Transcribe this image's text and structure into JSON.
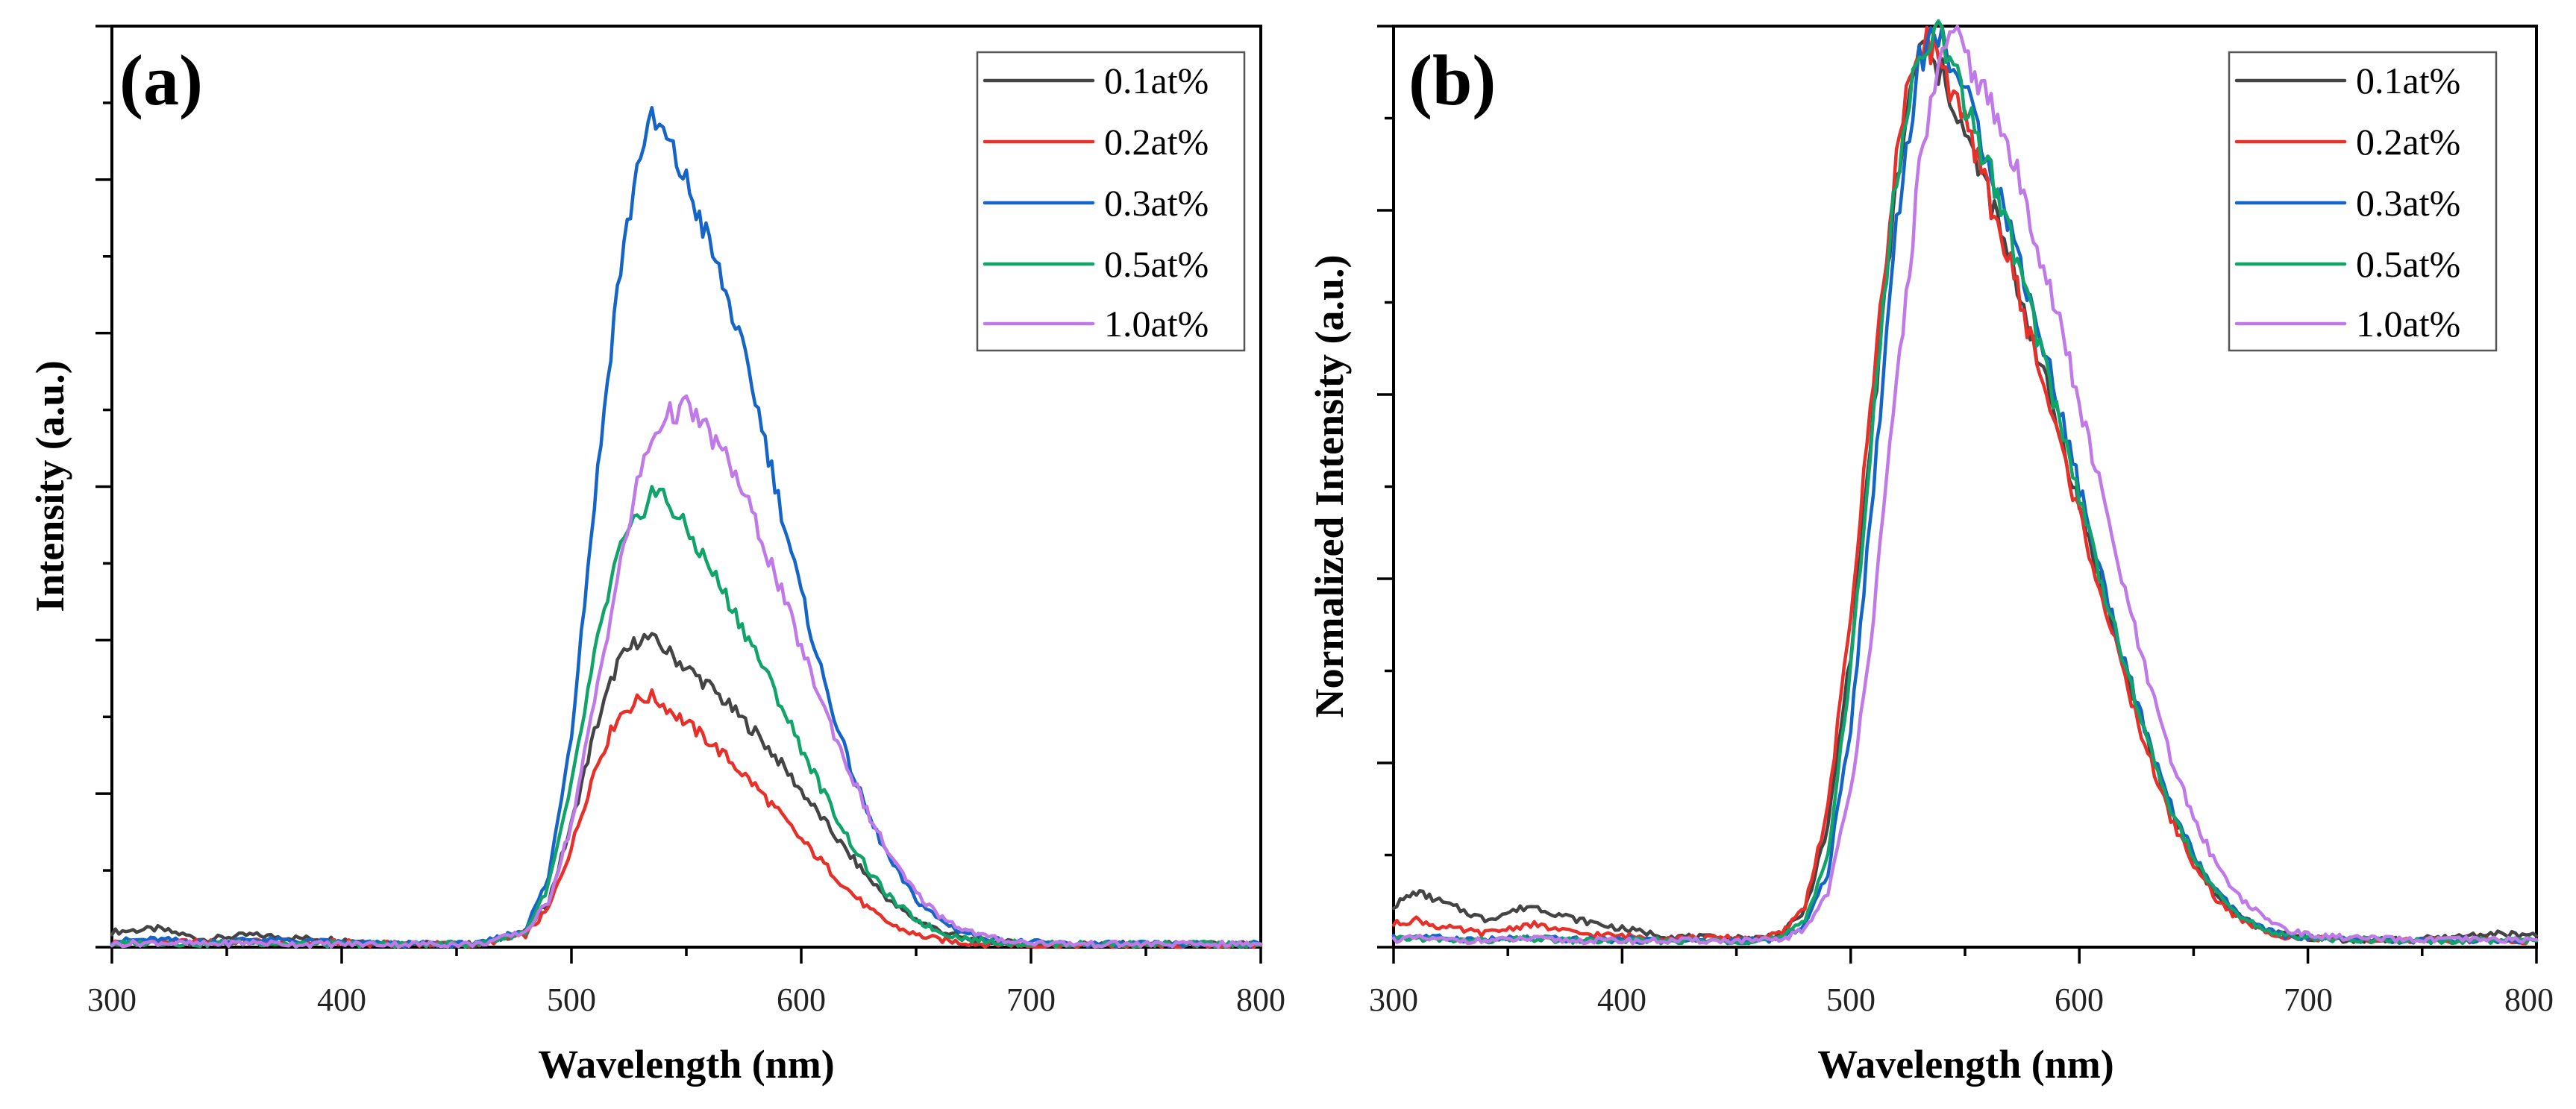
{
  "colors": {
    "0.1at%": "#444444",
    "0.2at%": "#e8302a",
    "0.3at%": "#1565c8",
    "0.5at%": "#10a36a",
    "1.0at%": "#c07ae8"
  },
  "chart_data": [
    {
      "type": "line",
      "panel": "(a)",
      "xlabel": "Wavelength (nm)",
      "ylabel": "Intensity (a.u.)",
      "xlim": [
        300,
        800
      ],
      "ylim": [
        0,
        6.0
      ],
      "x_ticks": [
        "300",
        "400",
        "500",
        "600",
        "700",
        "800"
      ],
      "y_tick_labels_shown": false,
      "legend_position": "top-right",
      "x": [
        300,
        320,
        340,
        360,
        380,
        400,
        420,
        440,
        460,
        480,
        490,
        500,
        510,
        520,
        530,
        535,
        540,
        550,
        560,
        570,
        580,
        590,
        600,
        610,
        620,
        630,
        640,
        650,
        660,
        670,
        680,
        690,
        700,
        720,
        740,
        760,
        780,
        800
      ],
      "series": [
        {
          "name": "0.1at%",
          "values": [
            0.1,
            0.12,
            0.05,
            0.08,
            0.06,
            0.05,
            0.03,
            0.02,
            0.02,
            0.1,
            0.3,
            0.8,
            1.4,
            1.85,
            2.02,
            2.0,
            1.95,
            1.82,
            1.7,
            1.55,
            1.4,
            1.22,
            1.02,
            0.82,
            0.62,
            0.44,
            0.28,
            0.18,
            0.11,
            0.06,
            0.04,
            0.03,
            0.02,
            0.02,
            0.02,
            0.02,
            0.02,
            0.02
          ]
        },
        {
          "name": "0.2at%",
          "values": [
            0.03,
            0.04,
            0.03,
            0.04,
            0.03,
            0.03,
            0.02,
            0.02,
            0.02,
            0.08,
            0.25,
            0.65,
            1.15,
            1.5,
            1.62,
            1.63,
            1.58,
            1.46,
            1.34,
            1.2,
            1.05,
            0.88,
            0.7,
            0.54,
            0.38,
            0.24,
            0.14,
            0.08,
            0.05,
            0.03,
            0.02,
            0.02,
            0.01,
            0.01,
            0.01,
            0.01,
            0.01,
            0.01
          ]
        },
        {
          "name": "0.3at%",
          "values": [
            0.04,
            0.05,
            0.03,
            0.05,
            0.04,
            0.03,
            0.02,
            0.02,
            0.02,
            0.12,
            0.45,
            1.4,
            2.9,
            4.3,
            5.2,
            5.37,
            5.3,
            4.98,
            4.58,
            4.13,
            3.58,
            2.93,
            2.3,
            1.73,
            1.23,
            0.83,
            0.53,
            0.31,
            0.18,
            0.1,
            0.06,
            0.04,
            0.03,
            0.02,
            0.02,
            0.02,
            0.02,
            0.02
          ]
        },
        {
          "name": "0.5at%",
          "values": [
            0.02,
            0.03,
            0.02,
            0.03,
            0.02,
            0.02,
            0.02,
            0.02,
            0.02,
            0.1,
            0.4,
            1.05,
            1.9,
            2.55,
            2.82,
            2.97,
            2.94,
            2.72,
            2.48,
            2.21,
            1.93,
            1.62,
            1.3,
            1.0,
            0.72,
            0.48,
            0.3,
            0.18,
            0.1,
            0.06,
            0.04,
            0.03,
            0.02,
            0.02,
            0.02,
            0.02,
            0.02,
            0.02
          ]
        },
        {
          "name": "1.0at%",
          "values": [
            0.02,
            0.03,
            0.02,
            0.03,
            0.02,
            0.02,
            0.02,
            0.02,
            0.02,
            0.1,
            0.3,
            0.8,
            1.6,
            2.4,
            3.1,
            3.3,
            3.45,
            3.52,
            3.35,
            3.12,
            2.77,
            2.37,
            1.95,
            1.56,
            1.18,
            0.84,
            0.56,
            0.35,
            0.21,
            0.12,
            0.07,
            0.04,
            0.03,
            0.02,
            0.02,
            0.02,
            0.02,
            0.02
          ]
        }
      ]
    },
    {
      "type": "line",
      "panel": "(b)",
      "xlabel": "Wavelength (nm)",
      "ylabel": "Normalized Intensity (a.u.)",
      "xlim": [
        300,
        800
      ],
      "ylim": [
        0,
        1.0
      ],
      "x_ticks": [
        "300",
        "400",
        "500",
        "600",
        "700",
        "800"
      ],
      "y_tick_labels_shown": false,
      "legend_position": "top-right",
      "x": [
        300,
        310,
        320,
        340,
        360,
        380,
        400,
        420,
        440,
        460,
        470,
        480,
        490,
        500,
        510,
        520,
        530,
        535,
        540,
        545,
        550,
        560,
        570,
        580,
        590,
        600,
        610,
        620,
        630,
        640,
        650,
        660,
        670,
        680,
        690,
        700,
        720,
        740,
        760,
        780,
        800
      ],
      "series": [
        {
          "name": "0.1at%",
          "values": [
            0.045,
            0.06,
            0.05,
            0.03,
            0.045,
            0.03,
            0.02,
            0.012,
            0.01,
            0.01,
            0.015,
            0.04,
            0.13,
            0.32,
            0.58,
            0.83,
            0.98,
            0.96,
            0.945,
            0.92,
            0.88,
            0.82,
            0.74,
            0.66,
            0.57,
            0.48,
            0.39,
            0.3,
            0.22,
            0.15,
            0.095,
            0.055,
            0.033,
            0.02,
            0.013,
            0.01,
            0.008,
            0.008,
            0.01,
            0.015,
            0.012
          ]
        },
        {
          "name": "0.2at%",
          "values": [
            0.025,
            0.03,
            0.022,
            0.015,
            0.025,
            0.015,
            0.012,
            0.01,
            0.01,
            0.01,
            0.015,
            0.045,
            0.15,
            0.36,
            0.62,
            0.86,
            0.99,
            0.98,
            0.96,
            0.925,
            0.89,
            0.82,
            0.74,
            0.65,
            0.56,
            0.47,
            0.38,
            0.29,
            0.21,
            0.14,
            0.09,
            0.052,
            0.03,
            0.018,
            0.012,
            0.009,
            0.008,
            0.007,
            0.007,
            0.007,
            0.007
          ]
        },
        {
          "name": "0.3at%",
          "values": [
            0.01,
            0.012,
            0.01,
            0.008,
            0.01,
            0.008,
            0.008,
            0.007,
            0.007,
            0.007,
            0.01,
            0.025,
            0.08,
            0.24,
            0.5,
            0.79,
            0.96,
            0.99,
            0.985,
            0.96,
            0.925,
            0.86,
            0.78,
            0.69,
            0.6,
            0.5,
            0.4,
            0.31,
            0.225,
            0.155,
            0.1,
            0.06,
            0.035,
            0.02,
            0.013,
            0.01,
            0.008,
            0.007,
            0.007,
            0.007,
            0.007
          ]
        },
        {
          "name": "0.5at%",
          "values": [
            0.008,
            0.01,
            0.008,
            0.007,
            0.009,
            0.007,
            0.007,
            0.007,
            0.007,
            0.007,
            0.01,
            0.03,
            0.1,
            0.3,
            0.58,
            0.84,
            0.975,
            0.995,
            0.985,
            0.95,
            0.915,
            0.85,
            0.77,
            0.68,
            0.585,
            0.49,
            0.395,
            0.305,
            0.222,
            0.15,
            0.097,
            0.058,
            0.034,
            0.02,
            0.013,
            0.01,
            0.008,
            0.007,
            0.007,
            0.007,
            0.007
          ]
        },
        {
          "name": "1.0at%",
          "values": [
            0.008,
            0.01,
            0.008,
            0.007,
            0.009,
            0.007,
            0.007,
            0.007,
            0.007,
            0.007,
            0.008,
            0.02,
            0.06,
            0.17,
            0.36,
            0.61,
            0.84,
            0.92,
            0.965,
            0.985,
            0.97,
            0.92,
            0.86,
            0.78,
            0.69,
            0.59,
            0.49,
            0.385,
            0.29,
            0.205,
            0.14,
            0.09,
            0.055,
            0.033,
            0.02,
            0.013,
            0.01,
            0.008,
            0.008,
            0.008,
            0.008
          ]
        }
      ]
    }
  ]
}
